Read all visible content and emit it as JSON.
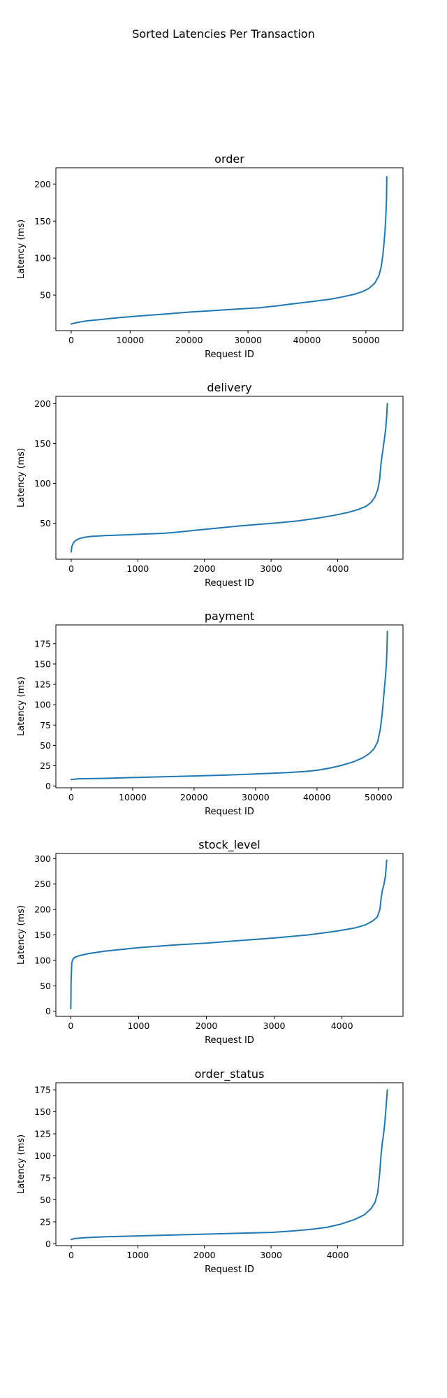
{
  "figure": {
    "suptitle": "Sorted Latencies Per Transaction"
  },
  "chart_data": [
    {
      "type": "line",
      "title": "order",
      "xlabel": "Request ID",
      "ylabel": "Latency (ms)",
      "xlim": [
        -2600,
        56300
      ],
      "ylim": [
        2,
        222
      ],
      "xticks": [
        0,
        10000,
        20000,
        30000,
        40000,
        50000
      ],
      "yticks": [
        50,
        100,
        150,
        200
      ],
      "grid": false,
      "series": [
        {
          "color": "#1f77b4",
          "x": [
            0,
            1000,
            2500,
            5000,
            8000,
            12000,
            16000,
            20000,
            24000,
            28000,
            32000,
            35000,
            38000,
            41000,
            44000,
            46000,
            48000,
            49500,
            50500,
            51500,
            52200,
            52600,
            52900,
            53100,
            53250,
            53400,
            53500,
            53550
          ],
          "y": [
            11,
            13,
            15,
            17,
            19.5,
            22,
            24.5,
            27,
            29,
            31,
            33,
            35.5,
            38.5,
            41.5,
            44.5,
            47.5,
            51,
            55,
            59,
            66,
            76,
            88,
            105,
            122,
            138,
            158,
            180,
            210
          ]
        }
      ]
    },
    {
      "type": "line",
      "title": "delivery",
      "xlabel": "Request ID",
      "ylabel": "Latency (ms)",
      "xlim": [
        -230,
        4980
      ],
      "ylim": [
        5,
        209
      ],
      "xticks": [
        0,
        1000,
        2000,
        3000,
        4000
      ],
      "yticks": [
        50,
        100,
        150,
        200
      ],
      "grid": false,
      "series": [
        {
          "color": "#1f77b4",
          "x": [
            0,
            10,
            30,
            60,
            100,
            150,
            200,
            300,
            500,
            800,
            1100,
            1400,
            1600,
            1900,
            2200,
            2500,
            2800,
            3100,
            3400,
            3700,
            3950,
            4150,
            4300,
            4420,
            4500,
            4560,
            4600,
            4630,
            4650,
            4680,
            4700,
            4720,
            4735,
            4745
          ],
          "y": [
            14,
            21,
            25,
            28,
            30,
            31.5,
            32.5,
            33.5,
            34.5,
            35.5,
            36.5,
            37.5,
            39,
            41.5,
            44,
            46.5,
            48.5,
            50.5,
            53,
            56.5,
            60,
            63.5,
            67,
            71,
            76,
            83,
            92,
            105,
            125,
            143,
            155,
            168,
            184,
            200
          ]
        }
      ]
    },
    {
      "type": "line",
      "title": "payment",
      "xlabel": "Request ID",
      "ylabel": "Latency (ms)",
      "xlim": [
        -2500,
        54000
      ],
      "ylim": [
        -2,
        198
      ],
      "xticks": [
        0,
        10000,
        20000,
        30000,
        40000,
        50000
      ],
      "yticks": [
        0,
        25,
        50,
        75,
        100,
        125,
        150,
        175
      ],
      "grid": false,
      "series": [
        {
          "color": "#1f77b4",
          "x": [
            0,
            1000,
            5000,
            10000,
            15000,
            20000,
            25000,
            30000,
            35000,
            38000,
            40000,
            42000,
            44000,
            46000,
            47500,
            48500,
            49300,
            49900,
            50300,
            50600,
            50800,
            51000,
            51150,
            51300,
            51400,
            51450
          ],
          "y": [
            8,
            9,
            9.5,
            10.5,
            11.5,
            12.5,
            13.5,
            15,
            16.5,
            18,
            19.5,
            22,
            25.5,
            30,
            35,
            40,
            46,
            55,
            70,
            88,
            105,
            122,
            135,
            150,
            170,
            190
          ]
        }
      ]
    },
    {
      "type": "line",
      "title": "stock_level",
      "xlabel": "Request ID",
      "ylabel": "Latency (ms)",
      "xlim": [
        -220,
        4900
      ],
      "ylim": [
        -10,
        310
      ],
      "xticks": [
        0,
        1000,
        2000,
        3000,
        4000
      ],
      "yticks": [
        0,
        50,
        100,
        150,
        200,
        250,
        300
      ],
      "grid": false,
      "series": [
        {
          "color": "#1f77b4",
          "x": [
            0,
            5,
            15,
            30,
            60,
            120,
            250,
            500,
            1000,
            1500,
            2000,
            2500,
            3000,
            3500,
            3900,
            4200,
            4350,
            4450,
            4520,
            4560,
            4580,
            4600,
            4620,
            4640,
            4650,
            4660
          ],
          "y": [
            5,
            60,
            95,
            102,
            106,
            109,
            113,
            118,
            125,
            130,
            134,
            139,
            144,
            150,
            157,
            164,
            170,
            177,
            185,
            200,
            225,
            240,
            250,
            265,
            280,
            297
          ]
        }
      ]
    },
    {
      "type": "line",
      "title": "order_status",
      "xlabel": "Request ID",
      "ylabel": "Latency (ms)",
      "xlim": [
        -230,
        4980
      ],
      "ylim": [
        -2,
        183
      ],
      "xticks": [
        0,
        1000,
        2000,
        3000,
        4000
      ],
      "yticks": [
        0,
        25,
        50,
        75,
        100,
        125,
        150,
        175
      ],
      "grid": false,
      "series": [
        {
          "color": "#1f77b4",
          "x": [
            0,
            50,
            200,
            500,
            1000,
            1500,
            2000,
            2500,
            3000,
            3300,
            3600,
            3850,
            4050,
            4250,
            4400,
            4500,
            4560,
            4600,
            4630,
            4650,
            4670,
            4690,
            4710,
            4730,
            4745
          ],
          "y": [
            5,
            6,
            7,
            8,
            9,
            10,
            11,
            12,
            13,
            14.5,
            16.5,
            19,
            22.5,
            27.5,
            33,
            40,
            47,
            58,
            80,
            100,
            115,
            125,
            140,
            160,
            175
          ]
        }
      ]
    }
  ]
}
